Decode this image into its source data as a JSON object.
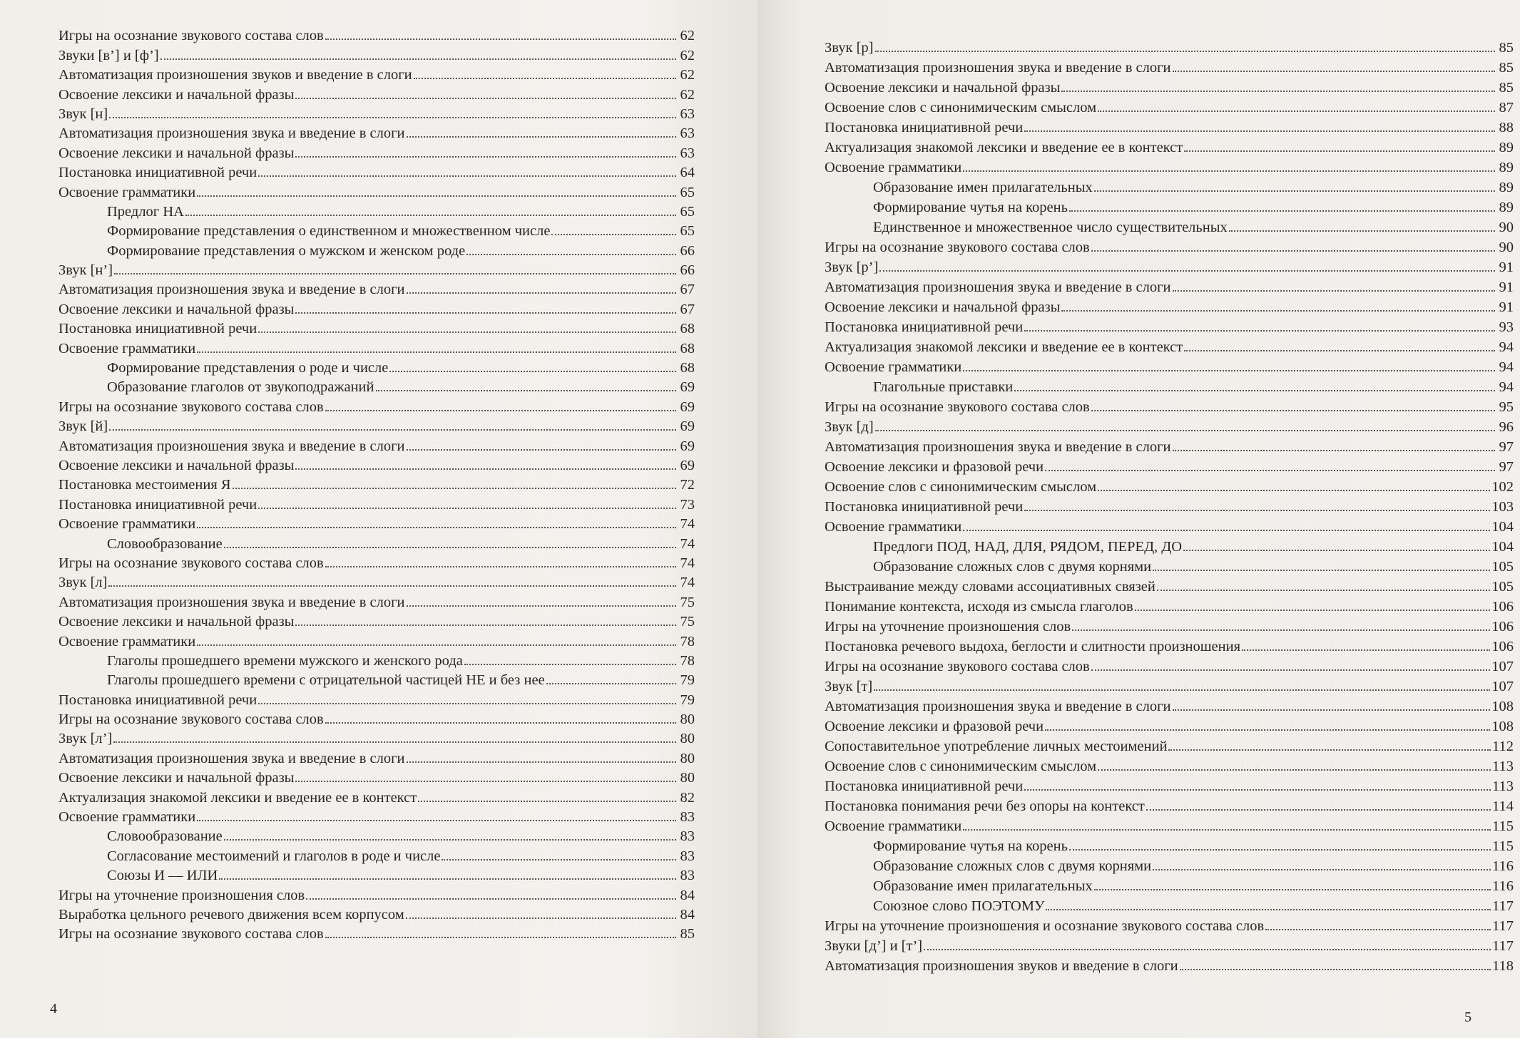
{
  "left_page": {
    "page_number": "4",
    "entries": [
      {
        "title": "Игры на осознание звукового состава слов",
        "page": "62",
        "level": 0
      },
      {
        "title": "Звуки [в’] и [ф’]",
        "page": "62",
        "level": 0
      },
      {
        "title": "Автоматизация произношения звуков и введение в слоги",
        "page": "62",
        "level": 0
      },
      {
        "title": "Освоение лексики и начальной фразы",
        "page": "62",
        "level": 0
      },
      {
        "title": "Звук [н]",
        "page": "63",
        "level": 0
      },
      {
        "title": "Автоматизация произношения звука и введение в слоги",
        "page": "63",
        "level": 0
      },
      {
        "title": "Освоение лексики и начальной фразы",
        "page": "63",
        "level": 0
      },
      {
        "title": "Постановка инициативной речи",
        "page": "64",
        "level": 0
      },
      {
        "title": "Освоение грамматики",
        "page": "65",
        "level": 0
      },
      {
        "title": "Предлог НА",
        "page": "65",
        "level": 1
      },
      {
        "title": "Формирование представления о единственном и множественном числе",
        "page": "65",
        "level": 1
      },
      {
        "title": "Формирование представления о мужском и женском роде",
        "page": "66",
        "level": 1
      },
      {
        "title": "Звук [н’]",
        "page": "66",
        "level": 0
      },
      {
        "title": "Автоматизация произношения звука и введение в слоги",
        "page": "67",
        "level": 0
      },
      {
        "title": "Освоение лексики и начальной фразы",
        "page": "67",
        "level": 0
      },
      {
        "title": "Постановка инициативной речи",
        "page": "68",
        "level": 0
      },
      {
        "title": "Освоение грамматики",
        "page": "68",
        "level": 0
      },
      {
        "title": "Формирование представления о роде и числе",
        "page": "68",
        "level": 1
      },
      {
        "title": "Образование глаголов от звукоподражаний",
        "page": "69",
        "level": 1
      },
      {
        "title": "Игры на осознание звукового состава слов",
        "page": "69",
        "level": 0
      },
      {
        "title": "Звук [й]",
        "page": "69",
        "level": 0
      },
      {
        "title": "Автоматизация произношения звука и введение в слоги",
        "page": "69",
        "level": 0
      },
      {
        "title": "Освоение лексики и начальной фразы",
        "page": "69",
        "level": 0
      },
      {
        "title": "Постановка местоимения Я",
        "page": "72",
        "level": 0
      },
      {
        "title": "Постановка инициативной речи",
        "page": "73",
        "level": 0
      },
      {
        "title": "Освоение грамматики",
        "page": "74",
        "level": 0
      },
      {
        "title": "Словообразование",
        "page": "74",
        "level": 1
      },
      {
        "title": "Игры на осознание звукового состава слов",
        "page": "74",
        "level": 0
      },
      {
        "title": "Звук [л]",
        "page": "74",
        "level": 0
      },
      {
        "title": "Автоматизация произношения звука и введение в слоги",
        "page": "75",
        "level": 0
      },
      {
        "title": "Освоение лексики и начальной фразы",
        "page": "75",
        "level": 0
      },
      {
        "title": "Освоение грамматики",
        "page": "78",
        "level": 0
      },
      {
        "title": "Глаголы прошедшего времени мужского и женского рода",
        "page": "78",
        "level": 1
      },
      {
        "title": "Глаголы прошедшего времени с отрицательной частицей НЕ и без нее",
        "page": "79",
        "level": 1
      },
      {
        "title": "Постановка инициативной речи",
        "page": "79",
        "level": 0
      },
      {
        "title": "Игры на осознание звукового состава слов",
        "page": "80",
        "level": 0
      },
      {
        "title": "Звук [л’]",
        "page": "80",
        "level": 0
      },
      {
        "title": "Автоматизация произношения звука и введение в слоги",
        "page": "80",
        "level": 0
      },
      {
        "title": "Освоение лексики и начальной фразы",
        "page": "80",
        "level": 0
      },
      {
        "title": "Актуализация знакомой лексики и введение ее в контекст",
        "page": "82",
        "level": 0
      },
      {
        "title": "Освоение грамматики",
        "page": "83",
        "level": 0
      },
      {
        "title": "Словообразование",
        "page": "83",
        "level": 1
      },
      {
        "title": "Согласование местоимений и глаголов в роде и числе",
        "page": "83",
        "level": 1
      },
      {
        "title": "Союзы И — ИЛИ",
        "page": "83",
        "level": 1
      },
      {
        "title": "Игры на уточнение произношения слов",
        "page": "84",
        "level": 0
      },
      {
        "title": "Выработка цельного речевого движения всем корпусом",
        "page": "84",
        "level": 0
      },
      {
        "title": "Игры на осознание звукового состава слов",
        "page": "85",
        "level": 0
      }
    ]
  },
  "right_page": {
    "page_number": "5",
    "entries": [
      {
        "title": "Звук [р]",
        "page": "85",
        "level": 0
      },
      {
        "title": "Автоматизация произношения звука и введение в слоги",
        "page": "85",
        "level": 0
      },
      {
        "title": "Освоение лексики и начальной фразы",
        "page": "85",
        "level": 0
      },
      {
        "title": "Освоение слов с синонимическим смыслом",
        "page": "87",
        "level": 0
      },
      {
        "title": "Постановка инициативной речи",
        "page": "88",
        "level": 0
      },
      {
        "title": "Актуализация знакомой лексики и введение ее в контекст",
        "page": "89",
        "level": 0
      },
      {
        "title": "Освоение грамматики",
        "page": "89",
        "level": 0
      },
      {
        "title": "Образование имен прилагательных",
        "page": "89",
        "level": 1
      },
      {
        "title": "Формирование чутья на корень",
        "page": "89",
        "level": 1
      },
      {
        "title": "Единственное и множественное число существительных",
        "page": "90",
        "level": 1
      },
      {
        "title": "Игры на осознание звукового состава слов",
        "page": "90",
        "level": 0
      },
      {
        "title": "Звук [р’]",
        "page": "91",
        "level": 0
      },
      {
        "title": "Автоматизация произношения звука и введение в слоги",
        "page": "91",
        "level": 0
      },
      {
        "title": "Освоение лексики и начальной фразы",
        "page": "91",
        "level": 0
      },
      {
        "title": "Постановка инициативной речи",
        "page": "93",
        "level": 0
      },
      {
        "title": "Актуализация знакомой лексики и введение ее в контекст",
        "page": "94",
        "level": 0
      },
      {
        "title": "Освоение грамматики",
        "page": "94",
        "level": 0
      },
      {
        "title": "Глагольные приставки",
        "page": "94",
        "level": 1
      },
      {
        "title": "Игры на осознание звукового состава слов",
        "page": "95",
        "level": 0
      },
      {
        "title": "Звук [д]",
        "page": "96",
        "level": 0
      },
      {
        "title": "Автоматизация произношения звука и введение в слоги",
        "page": "97",
        "level": 0
      },
      {
        "title": "Освоение лексики и фразовой речи",
        "page": "97",
        "level": 0
      },
      {
        "title": "Освоение слов с синонимическим смыслом",
        "page": "102",
        "level": 0
      },
      {
        "title": "Постановка инициативной речи",
        "page": "103",
        "level": 0
      },
      {
        "title": "Освоение грамматики",
        "page": "104",
        "level": 0
      },
      {
        "title": "Предлоги ПОД, НАД, ДЛЯ, РЯДОМ, ПЕРЕД, ДО",
        "page": "104",
        "level": 1
      },
      {
        "title": "Образование сложных слов с двумя корнями",
        "page": "105",
        "level": 1
      },
      {
        "title": "Выстраивание между словами ассоциативных связей",
        "page": "105",
        "level": 0
      },
      {
        "title": "Понимание контекста, исходя из смысла глаголов",
        "page": "106",
        "level": 0
      },
      {
        "title": "Игры на уточнение произношения слов",
        "page": "106",
        "level": 0
      },
      {
        "title": "Постановка речевого выдоха, беглости и слитности произношения",
        "page": "106",
        "level": 0
      },
      {
        "title": "Игры на осознание звукового состава слов",
        "page": "107",
        "level": 0
      },
      {
        "title": "Звук [т]",
        "page": "107",
        "level": 0
      },
      {
        "title": "Автоматизация произношения звука и введение в слоги",
        "page": "108",
        "level": 0
      },
      {
        "title": "Освоение лексики и фразовой речи",
        "page": "108",
        "level": 0
      },
      {
        "title": "Сопоставительное употребление личных местоимений",
        "page": "112",
        "level": 0
      },
      {
        "title": "Освоение слов с синонимическим смыслом",
        "page": "113",
        "level": 0
      },
      {
        "title": "Постановка инициативной речи",
        "page": "113",
        "level": 0
      },
      {
        "title": "Постановка понимания речи без опоры на контекст",
        "page": "114",
        "level": 0
      },
      {
        "title": "Освоение грамматики",
        "page": "115",
        "level": 0
      },
      {
        "title": "Формирование чутья на корень",
        "page": "115",
        "level": 1
      },
      {
        "title": "Образование сложных слов с двумя корнями",
        "page": "116",
        "level": 1
      },
      {
        "title": "Образование имен прилагательных",
        "page": "116",
        "level": 1
      },
      {
        "title": "Союзное слово ПОЭТОМУ",
        "page": "117",
        "level": 1
      },
      {
        "title": "Игры на уточнение произношения и осознание звукового состава слов",
        "page": "117",
        "level": 0
      },
      {
        "title": "Звуки [д’] и [т’]",
        "page": "117",
        "level": 0
      },
      {
        "title": "Автоматизация произношения звуков и введение в слоги",
        "page": "118",
        "level": 0
      }
    ]
  }
}
